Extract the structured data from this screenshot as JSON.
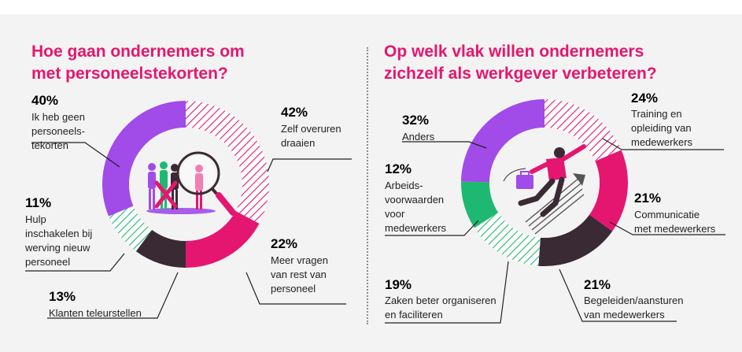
{
  "colors": {
    "magenta": "#e5166f",
    "purple": "#a14be8",
    "green": "#1fb872",
    "dark": "#3a2a33",
    "hatch": "#e5166f"
  },
  "chart_data": [
    {
      "type": "pie",
      "title": "Hoe gaan ondernemers om\nmet personeelstekorten?",
      "segments": [
        {
          "value": 42,
          "pct_label": "42%",
          "label": "Zelf overuren\ndraaien",
          "fill": "hatch-magenta"
        },
        {
          "value": 22,
          "pct_label": "22%",
          "label": "Meer vragen\nvan rest van\npersoneel",
          "fill": "magenta"
        },
        {
          "value": 13,
          "pct_label": "13%",
          "label": "Klanten teleurstellen",
          "fill": "dark"
        },
        {
          "value": 11,
          "pct_label": "11%",
          "label": "Hulp\ninschakelen bij\nwerving nieuw\npersoneel",
          "fill": "hatch-green"
        },
        {
          "value": 40,
          "pct_label": "40%",
          "label": "Ik heb geen\npersoneels-\ntekorten",
          "fill": "purple"
        }
      ]
    },
    {
      "type": "pie",
      "title": "Op welk vlak willen ondernemers\nzichzelf als werkgever verbeteren?",
      "segments": [
        {
          "value": 24,
          "pct_label": "24%",
          "label": "Training en\nopleiding van\nmedewerkers",
          "fill": "hatch-magenta"
        },
        {
          "value": 21,
          "pct_label": "21%",
          "label": "Communicatie\nmet medewerkers",
          "fill": "magenta"
        },
        {
          "value": 21,
          "pct_label": "21%",
          "label": "Begeleiden/aansturen\nvan medewerkers",
          "fill": "dark"
        },
        {
          "value": 19,
          "pct_label": "19%",
          "label": "Zaken beter organiseren\nen faciliteren",
          "fill": "hatch-green"
        },
        {
          "value": 12,
          "pct_label": "12%",
          "label": "Arbeids-\nvoorwaarden\nvoor\nmedewerkers",
          "fill": "green"
        },
        {
          "value": 32,
          "pct_label": "32%",
          "label": "Anders",
          "fill": "purple"
        }
      ]
    }
  ]
}
